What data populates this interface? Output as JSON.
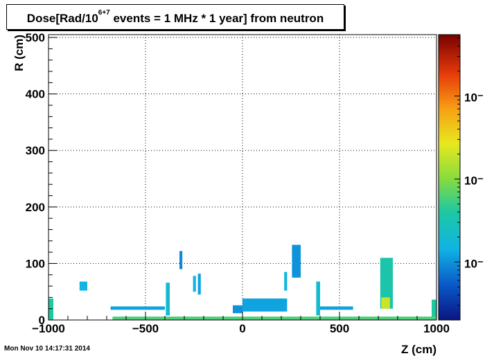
{
  "title": {
    "prefix": "Dose[Rad/10",
    "exponent": "6+7",
    "suffix": " events = 1 MHz * 1 year] from neutron"
  },
  "timestamp": "Mon Nov 10 14:17:31 2014",
  "chart_data": {
    "type": "heatmap",
    "xlabel": "Z (cm)",
    "ylabel": "R (cm)",
    "xlim": [
      -1000,
      1000
    ],
    "ylim": [
      0,
      505
    ],
    "x_ticks": [
      -1000,
      -500,
      0,
      500,
      1000
    ],
    "x_tick_labels": [
      "−1000",
      "−500",
      "0",
      "500",
      "1000"
    ],
    "y_ticks": [
      0,
      100,
      200,
      300,
      400,
      500
    ],
    "y_tick_labels": [
      "0",
      "100",
      "200",
      "300",
      "400",
      "500"
    ],
    "grid": true,
    "color_scale": "log",
    "colorbar_ticks": [
      0.001,
      0.01,
      0.1
    ],
    "colorbar_tick_labels": [
      "10⁻",
      "10⁻",
      "10⁻"
    ],
    "colorbar_range": [
      0.0002,
      0.55
    ],
    "regions": [
      {
        "z": [
          -1000,
          -975
        ],
        "r": [
          0,
          38
        ],
        "dose": 0.004
      },
      {
        "z": [
          975,
          1000
        ],
        "r": [
          0,
          36
        ],
        "dose": 0.004
      },
      {
        "z": [
          -840,
          -800
        ],
        "r": [
          52,
          68
        ],
        "dose": 0.0015
      },
      {
        "z": [
          -680,
          -400
        ],
        "r": [
          18,
          24
        ],
        "dose": 0.0012
      },
      {
        "z": [
          -395,
          -375
        ],
        "r": [
          8,
          66
        ],
        "dose": 0.002
      },
      {
        "z": [
          -325,
          -310
        ],
        "r": [
          90,
          122
        ],
        "dose": 0.0009
      },
      {
        "z": [
          -255,
          -240
        ],
        "r": [
          50,
          78
        ],
        "dose": 0.0015
      },
      {
        "z": [
          -230,
          -215
        ],
        "r": [
          45,
          82
        ],
        "dose": 0.0012
      },
      {
        "z": [
          -50,
          0
        ],
        "r": [
          12,
          26
        ],
        "dose": 0.001
      },
      {
        "z": [
          0,
          230
        ],
        "r": [
          15,
          38
        ],
        "dose": 0.0012
      },
      {
        "z": [
          215,
          230
        ],
        "r": [
          52,
          85
        ],
        "dose": 0.0015
      },
      {
        "z": [
          255,
          300
        ],
        "r": [
          75,
          133
        ],
        "dose": 0.001
      },
      {
        "z": [
          380,
          400
        ],
        "r": [
          8,
          68
        ],
        "dose": 0.002
      },
      {
        "z": [
          400,
          570
        ],
        "r": [
          18,
          24
        ],
        "dose": 0.0012
      },
      {
        "z": [
          710,
          775
        ],
        "r": [
          20,
          110
        ],
        "dose": 0.0035
      },
      {
        "z": [
          715,
          760
        ],
        "r": [
          20,
          40
        ],
        "dose": 0.02
      },
      {
        "z": [
          -670,
          1000
        ],
        "r": [
          0,
          6
        ],
        "dose": 0.006
      }
    ]
  },
  "colors": {
    "axis": "#000000",
    "grid": "#000000",
    "frame_fill": "#ffffff"
  }
}
